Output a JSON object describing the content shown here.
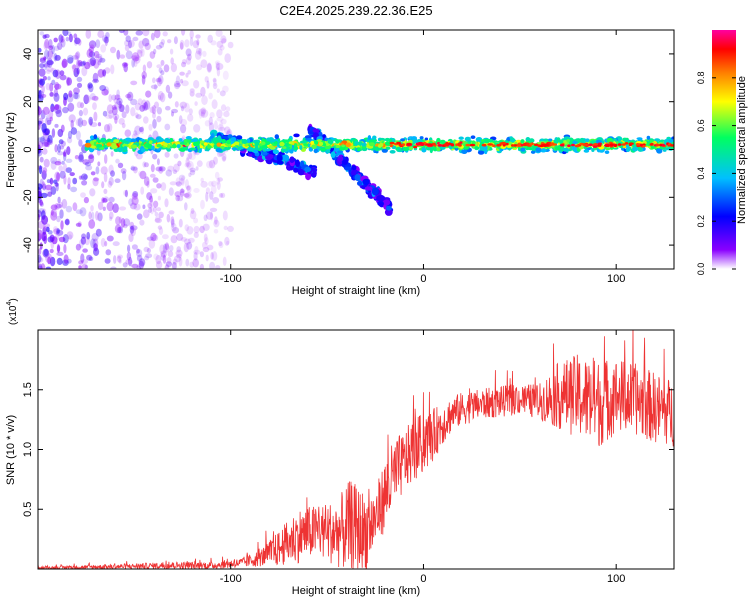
{
  "title": "C2E4.2025.239.22.36.E25",
  "chart_data": [
    {
      "type": "heatmap",
      "name": "spectrogram",
      "xlabel": "Height of straight line (km)",
      "ylabel": "Frequency (Hz)",
      "xlim": [
        -200,
        130
      ],
      "ylim": [
        -50,
        50
      ],
      "xticks": [
        -100,
        0,
        100
      ],
      "yticks": [
        -40,
        -20,
        0,
        20,
        40
      ],
      "colorbar": {
        "label": "Normalized spectral amplitude",
        "range": [
          0,
          1
        ],
        "ticks": [
          "0.0",
          "0.2",
          "0.4",
          "0.6",
          "0.8"
        ],
        "colors": [
          "#ffffff",
          "#8a00ff",
          "#0000ff",
          "#00c0ff",
          "#00ff60",
          "#ffff00",
          "#ff8000",
          "#ff0000",
          "#ff00a0"
        ]
      },
      "features": [
        {
          "name": "main-band",
          "x": [
            -175,
            130
          ],
          "freq_hz": 2,
          "amplitude": 0.55
        },
        {
          "name": "descending-track-1",
          "x": [
            -110,
            -55
          ],
          "freq_hz": [
            6,
            -10
          ],
          "amplitude": 0.3
        },
        {
          "name": "descending-track-2",
          "x": [
            -60,
            -17
          ],
          "freq_hz": [
            10,
            -25
          ],
          "amplitude": 0.25
        },
        {
          "name": "scatter-cloud",
          "x": [
            -200,
            -100
          ],
          "freq_hz": [
            -50,
            50
          ],
          "amplitude": 0.08
        }
      ]
    },
    {
      "type": "line",
      "name": "snr",
      "xlabel": "Height of straight line (km)",
      "ylabel": "SNR (10 * v/v)",
      "y_scale_label": "(x10",
      "y_scale_exp": "4",
      "xlim": [
        -200,
        130
      ],
      "ylim": [
        0,
        2.0
      ],
      "xticks": [
        -100,
        0,
        100
      ],
      "yticks": [
        "0.5",
        "1.0",
        "1.5"
      ],
      "color": "#ee3333",
      "envelope": {
        "x": [
          -200,
          -160,
          -130,
          -110,
          -95,
          -85,
          -75,
          -65,
          -55,
          -45,
          -38,
          -30,
          -25,
          -20,
          -15,
          -10,
          -5,
          0,
          5,
          10,
          15,
          20,
          30,
          40,
          50,
          60,
          70,
          80,
          90,
          100,
          110,
          120,
          130
        ],
        "mean": [
          0.01,
          0.02,
          0.03,
          0.03,
          0.05,
          0.09,
          0.17,
          0.28,
          0.32,
          0.3,
          0.35,
          0.3,
          0.42,
          0.62,
          0.78,
          0.9,
          1.0,
          1.05,
          1.12,
          1.22,
          1.3,
          1.34,
          1.38,
          1.4,
          1.42,
          1.4,
          1.45,
          1.45,
          1.38,
          1.45,
          1.42,
          1.35,
          1.3
        ],
        "noise": [
          0.01,
          0.02,
          0.03,
          0.03,
          0.04,
          0.07,
          0.15,
          0.23,
          0.22,
          0.28,
          0.4,
          0.35,
          0.25,
          0.3,
          0.32,
          0.25,
          0.28,
          0.25,
          0.22,
          0.18,
          0.15,
          0.14,
          0.13,
          0.13,
          0.13,
          0.15,
          0.28,
          0.35,
          0.38,
          0.32,
          0.3,
          0.3,
          0.28
        ]
      }
    }
  ]
}
